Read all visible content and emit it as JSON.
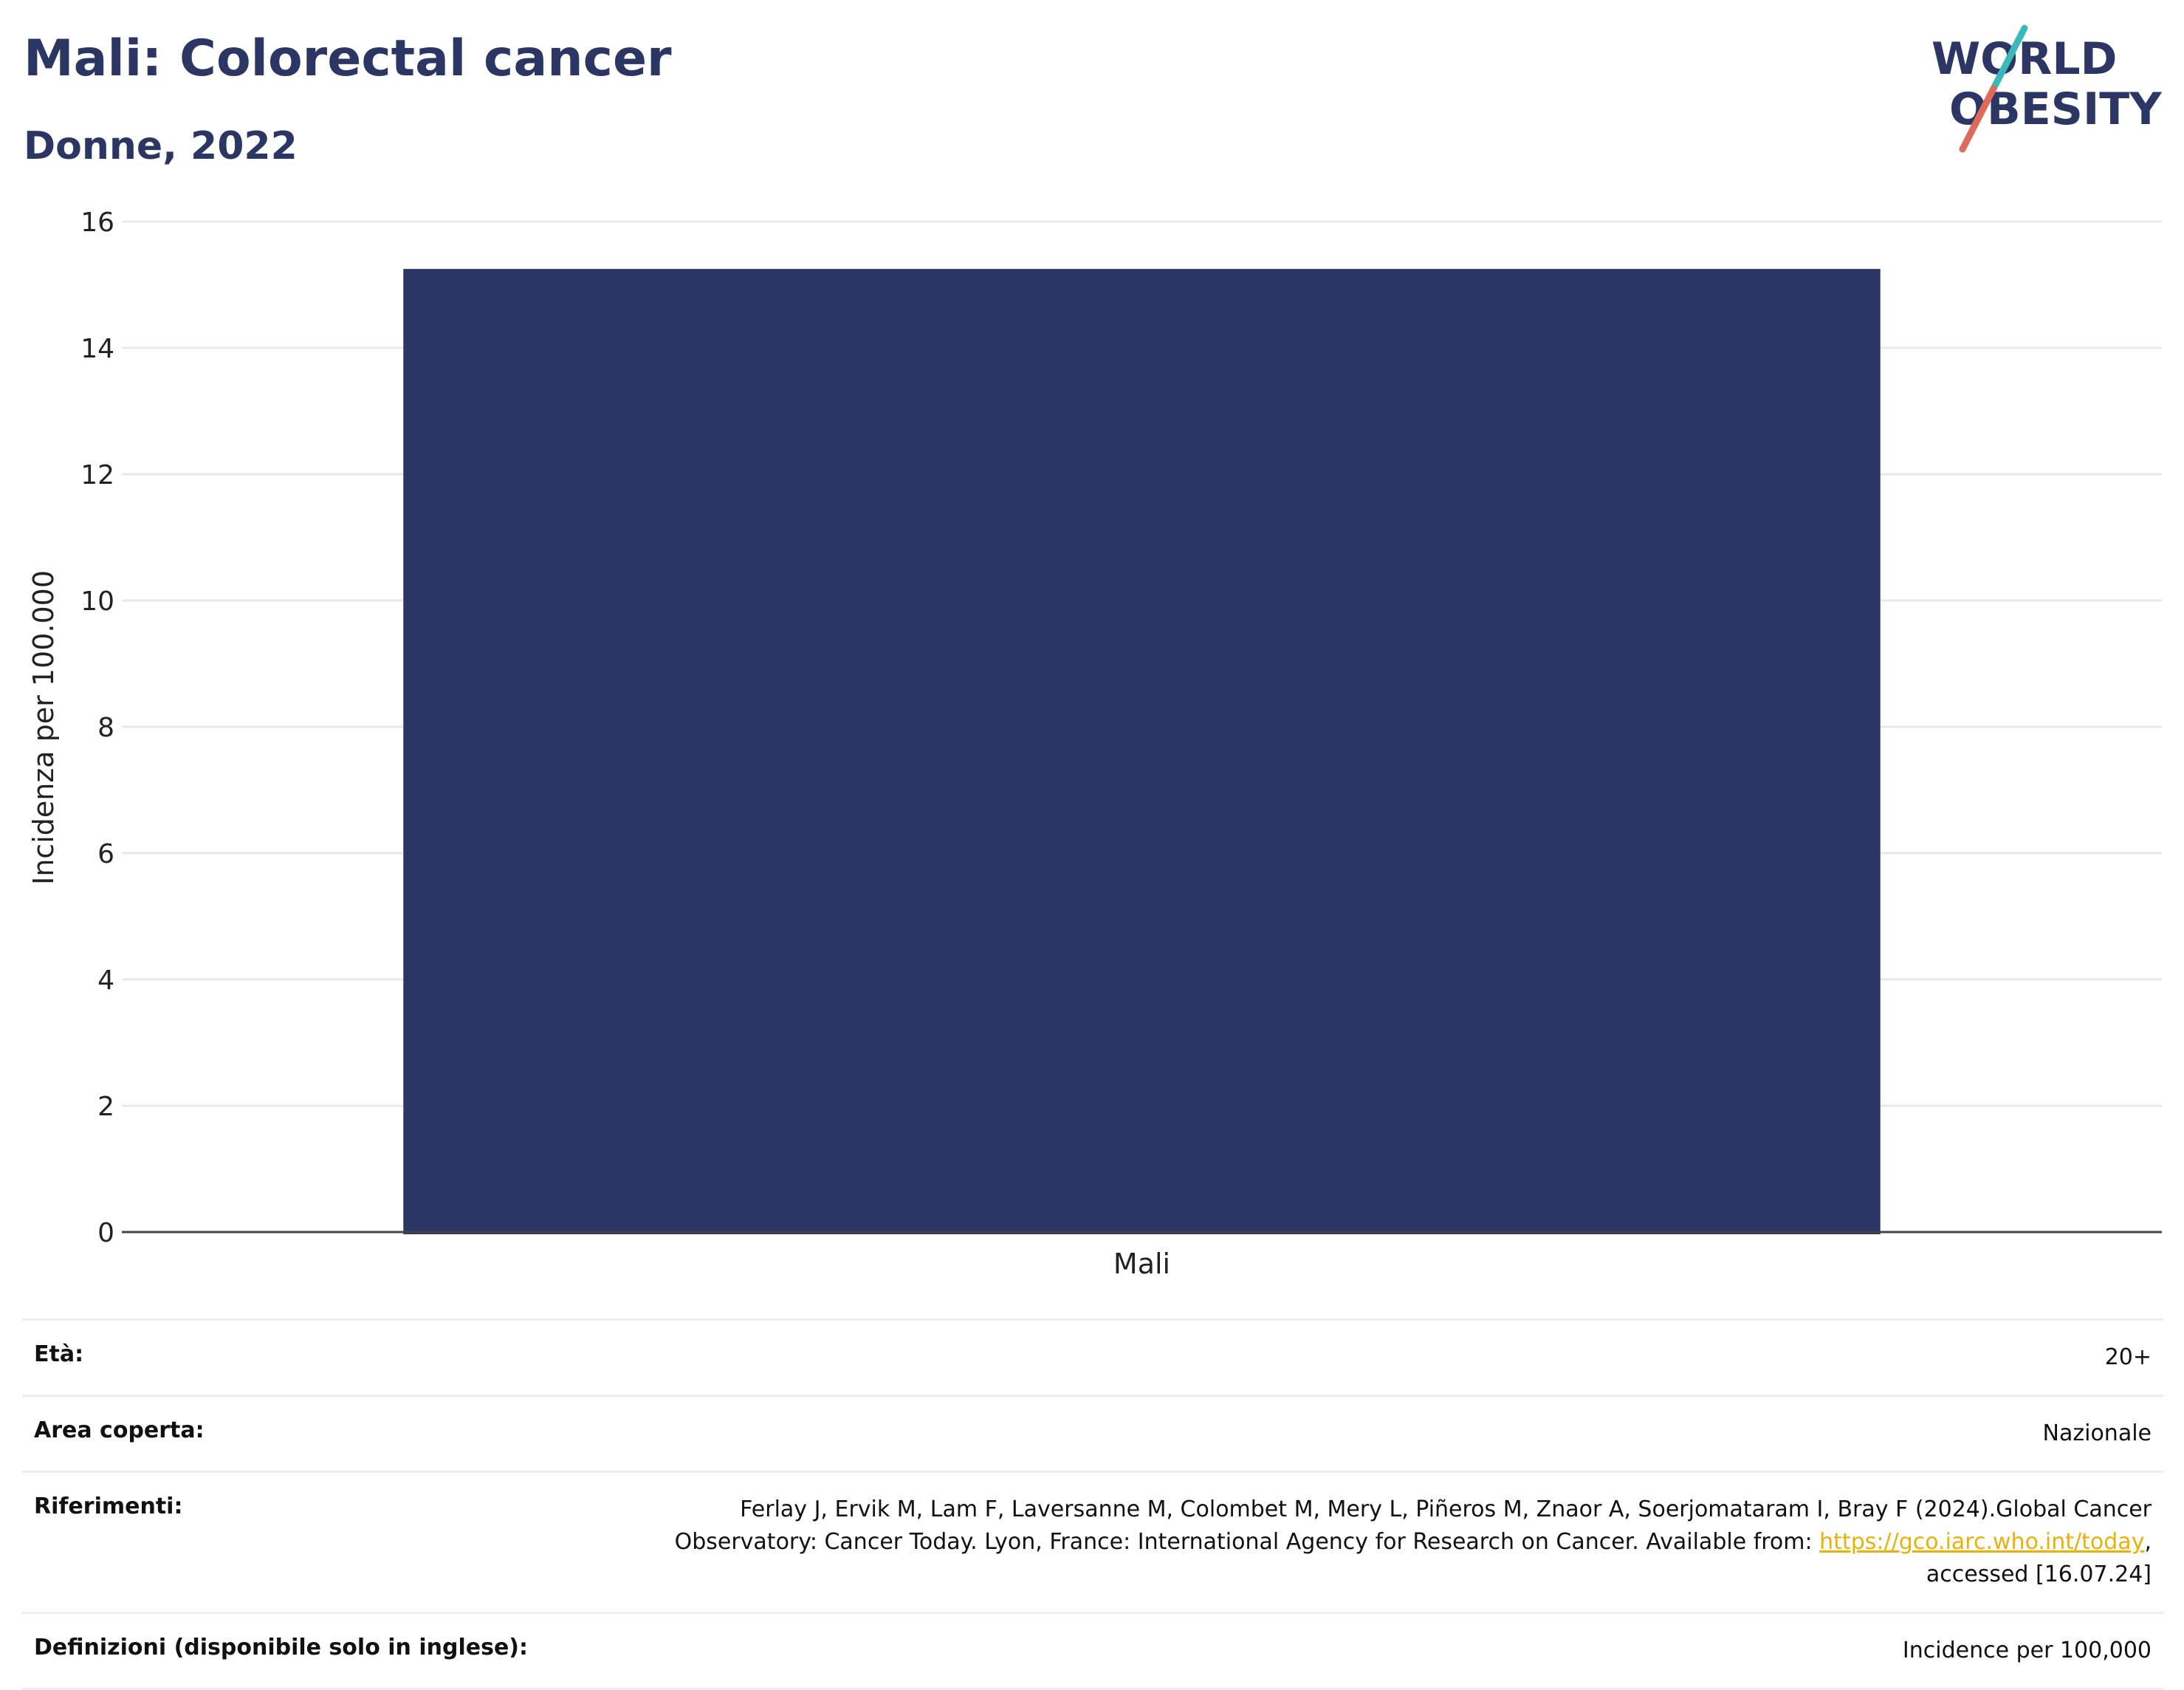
{
  "header": {
    "title": "Mali: Colorectal cancer",
    "subtitle": "Donne, 2022"
  },
  "logo": {
    "line1": "WORLD",
    "line2": "OBESITY",
    "colors": {
      "text": "#2b3664",
      "slash_top": "#3bb8b8",
      "slash_bottom": "#e06a5a"
    }
  },
  "chart_data": {
    "type": "bar",
    "categories": [
      "Mali"
    ],
    "values": [
      15.25
    ],
    "title": "",
    "xlabel": "",
    "ylabel": "Incidenza per 100.000",
    "ylim": [
      0,
      16
    ],
    "yticks": [
      "0",
      "2",
      "4",
      "6",
      "8",
      "10",
      "12",
      "14",
      "16"
    ],
    "grid": true,
    "bar_color": "#2b3664"
  },
  "details": {
    "age_label": "Età:",
    "age_value": "20+",
    "area_label": "Area coperta:",
    "area_value": "Nazionale",
    "refs_label": "Riferimenti:",
    "refs_text_1": "Ferlay J, Ervik M, Lam F, Laversanne M, Colombet M, Mery L, Piñeros M, Znaor A, Soerjomataram I, Bray F (2024).Global Cancer Observatory: Cancer Today. Lyon, France: International Agency for Research on Cancer. Available from: ",
    "refs_link": "https://gco.iarc.who.int/today",
    "refs_text_2": ", accessed [16.07.24]",
    "defs_label": "Definizioni (disponibile solo in inglese):",
    "defs_value": "Incidence per 100,000"
  }
}
